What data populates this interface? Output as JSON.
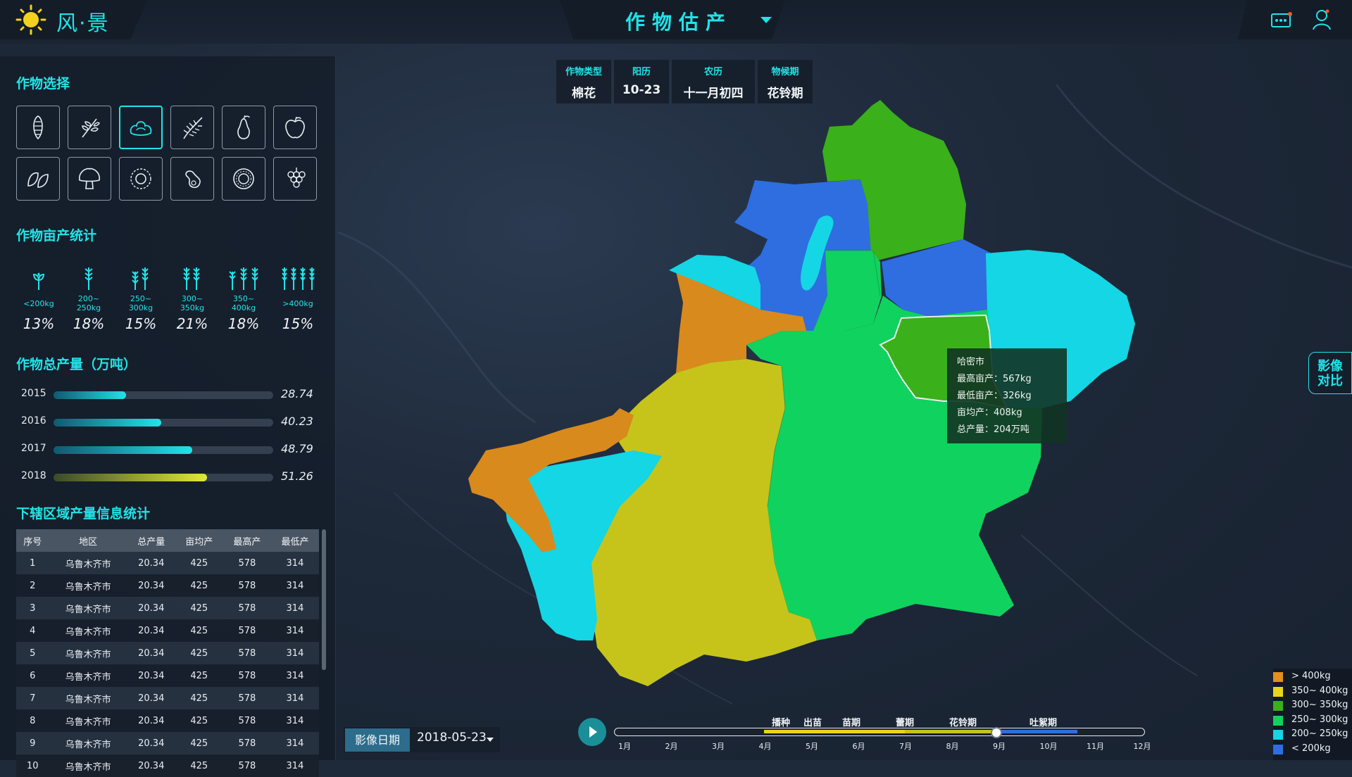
{
  "app": {
    "logo_text": "风·景",
    "title": "作物估产"
  },
  "sections": {
    "crop_select": "作物选择",
    "yield_stats": "作物亩产统计",
    "total_output": "作物总产量（万吨）",
    "region_stats": "下辖区域产量信息统计"
  },
  "crops": [
    {
      "icon": "corn-icon"
    },
    {
      "icon": "wheat-icon"
    },
    {
      "icon": "cotton-icon",
      "active": true
    },
    {
      "icon": "rice-icon"
    },
    {
      "icon": "pear-icon"
    },
    {
      "icon": "apple-icon"
    },
    {
      "icon": "leaf-icon"
    },
    {
      "icon": "mushroom-icon"
    },
    {
      "icon": "sunflower-icon"
    },
    {
      "icon": "bean-icon"
    },
    {
      "icon": "melon-icon"
    },
    {
      "icon": "grape-icon"
    }
  ],
  "yield_ranges": [
    {
      "range": "<200kg",
      "percent": "13%"
    },
    {
      "range": "200~\n250kg",
      "percent": "18%"
    },
    {
      "range": "250~\n300kg",
      "percent": "15%"
    },
    {
      "range": "300~\n350kg",
      "percent": "21%"
    },
    {
      "range": "350~\n400kg",
      "percent": "18%"
    },
    {
      "range": ">400kg",
      "percent": "15%"
    }
  ],
  "totals": [
    {
      "year": "2015",
      "value": "28.74",
      "fraction": 0.33,
      "color": "#22e3e8"
    },
    {
      "year": "2016",
      "value": "40.23",
      "fraction": 0.49,
      "color": "#22e3e8"
    },
    {
      "year": "2017",
      "value": "48.79",
      "fraction": 0.63,
      "color": "#22e3e8"
    },
    {
      "year": "2018",
      "value": "51.26",
      "fraction": 0.7,
      "color": "#e2e838"
    }
  ],
  "table": {
    "headers": [
      "序号",
      "地区",
      "总产量",
      "亩均产",
      "最高产",
      "最低产"
    ],
    "rows": [
      [
        "1",
        "乌鲁木齐市",
        "20.34",
        "425",
        "578",
        "314"
      ],
      [
        "2",
        "乌鲁木齐市",
        "20.34",
        "425",
        "578",
        "314"
      ],
      [
        "3",
        "乌鲁木齐市",
        "20.34",
        "425",
        "578",
        "314"
      ],
      [
        "4",
        "乌鲁木齐市",
        "20.34",
        "425",
        "578",
        "314"
      ],
      [
        "5",
        "乌鲁木齐市",
        "20.34",
        "425",
        "578",
        "314"
      ],
      [
        "6",
        "乌鲁木齐市",
        "20.34",
        "425",
        "578",
        "314"
      ],
      [
        "7",
        "乌鲁木齐市",
        "20.34",
        "425",
        "578",
        "314"
      ],
      [
        "8",
        "乌鲁木齐市",
        "20.34",
        "425",
        "578",
        "314"
      ],
      [
        "9",
        "乌鲁木齐市",
        "20.34",
        "425",
        "578",
        "314"
      ],
      [
        "10",
        "乌鲁木齐市",
        "20.34",
        "425",
        "578",
        "314"
      ]
    ]
  },
  "info": [
    {
      "label": "作物类型",
      "value": "棉花"
    },
    {
      "label": "阳历",
      "value": "10-23"
    },
    {
      "label": "农历",
      "value": "十一月初四"
    },
    {
      "label": "物候期",
      "value": "花铃期"
    }
  ],
  "tooltip": {
    "region": "哈密市",
    "max": "最高亩产：567kg",
    "min": "最低亩产：326kg",
    "avg": "亩均产：408kg",
    "total": "总产量：204万吨"
  },
  "compare_button": "影像\n对比",
  "legend": [
    {
      "label": "> 400kg",
      "color": "#e3901e"
    },
    {
      "label": "350~ 400kg",
      "color": "#e8d61a"
    },
    {
      "label": "300~ 350kg",
      "color": "#3ab01a"
    },
    {
      "label": "250~ 300kg",
      "color": "#10d25e"
    },
    {
      "label": "200~ 250kg",
      "color": "#14d6e4"
    },
    {
      "label": "< 200kg",
      "color": "#2e6ee0"
    }
  ],
  "image_date": {
    "label": "影像日期",
    "value": "2018-05-23"
  },
  "timeline": {
    "months": [
      "1月",
      "2月",
      "3月",
      "4月",
      "5月",
      "6月",
      "7月",
      "8月",
      "9月",
      "10月",
      "11月",
      "12月"
    ],
    "stages": [
      "播种",
      "出苗",
      "苗期",
      "蕾期",
      "花铃期",
      "吐絮期"
    ]
  }
}
